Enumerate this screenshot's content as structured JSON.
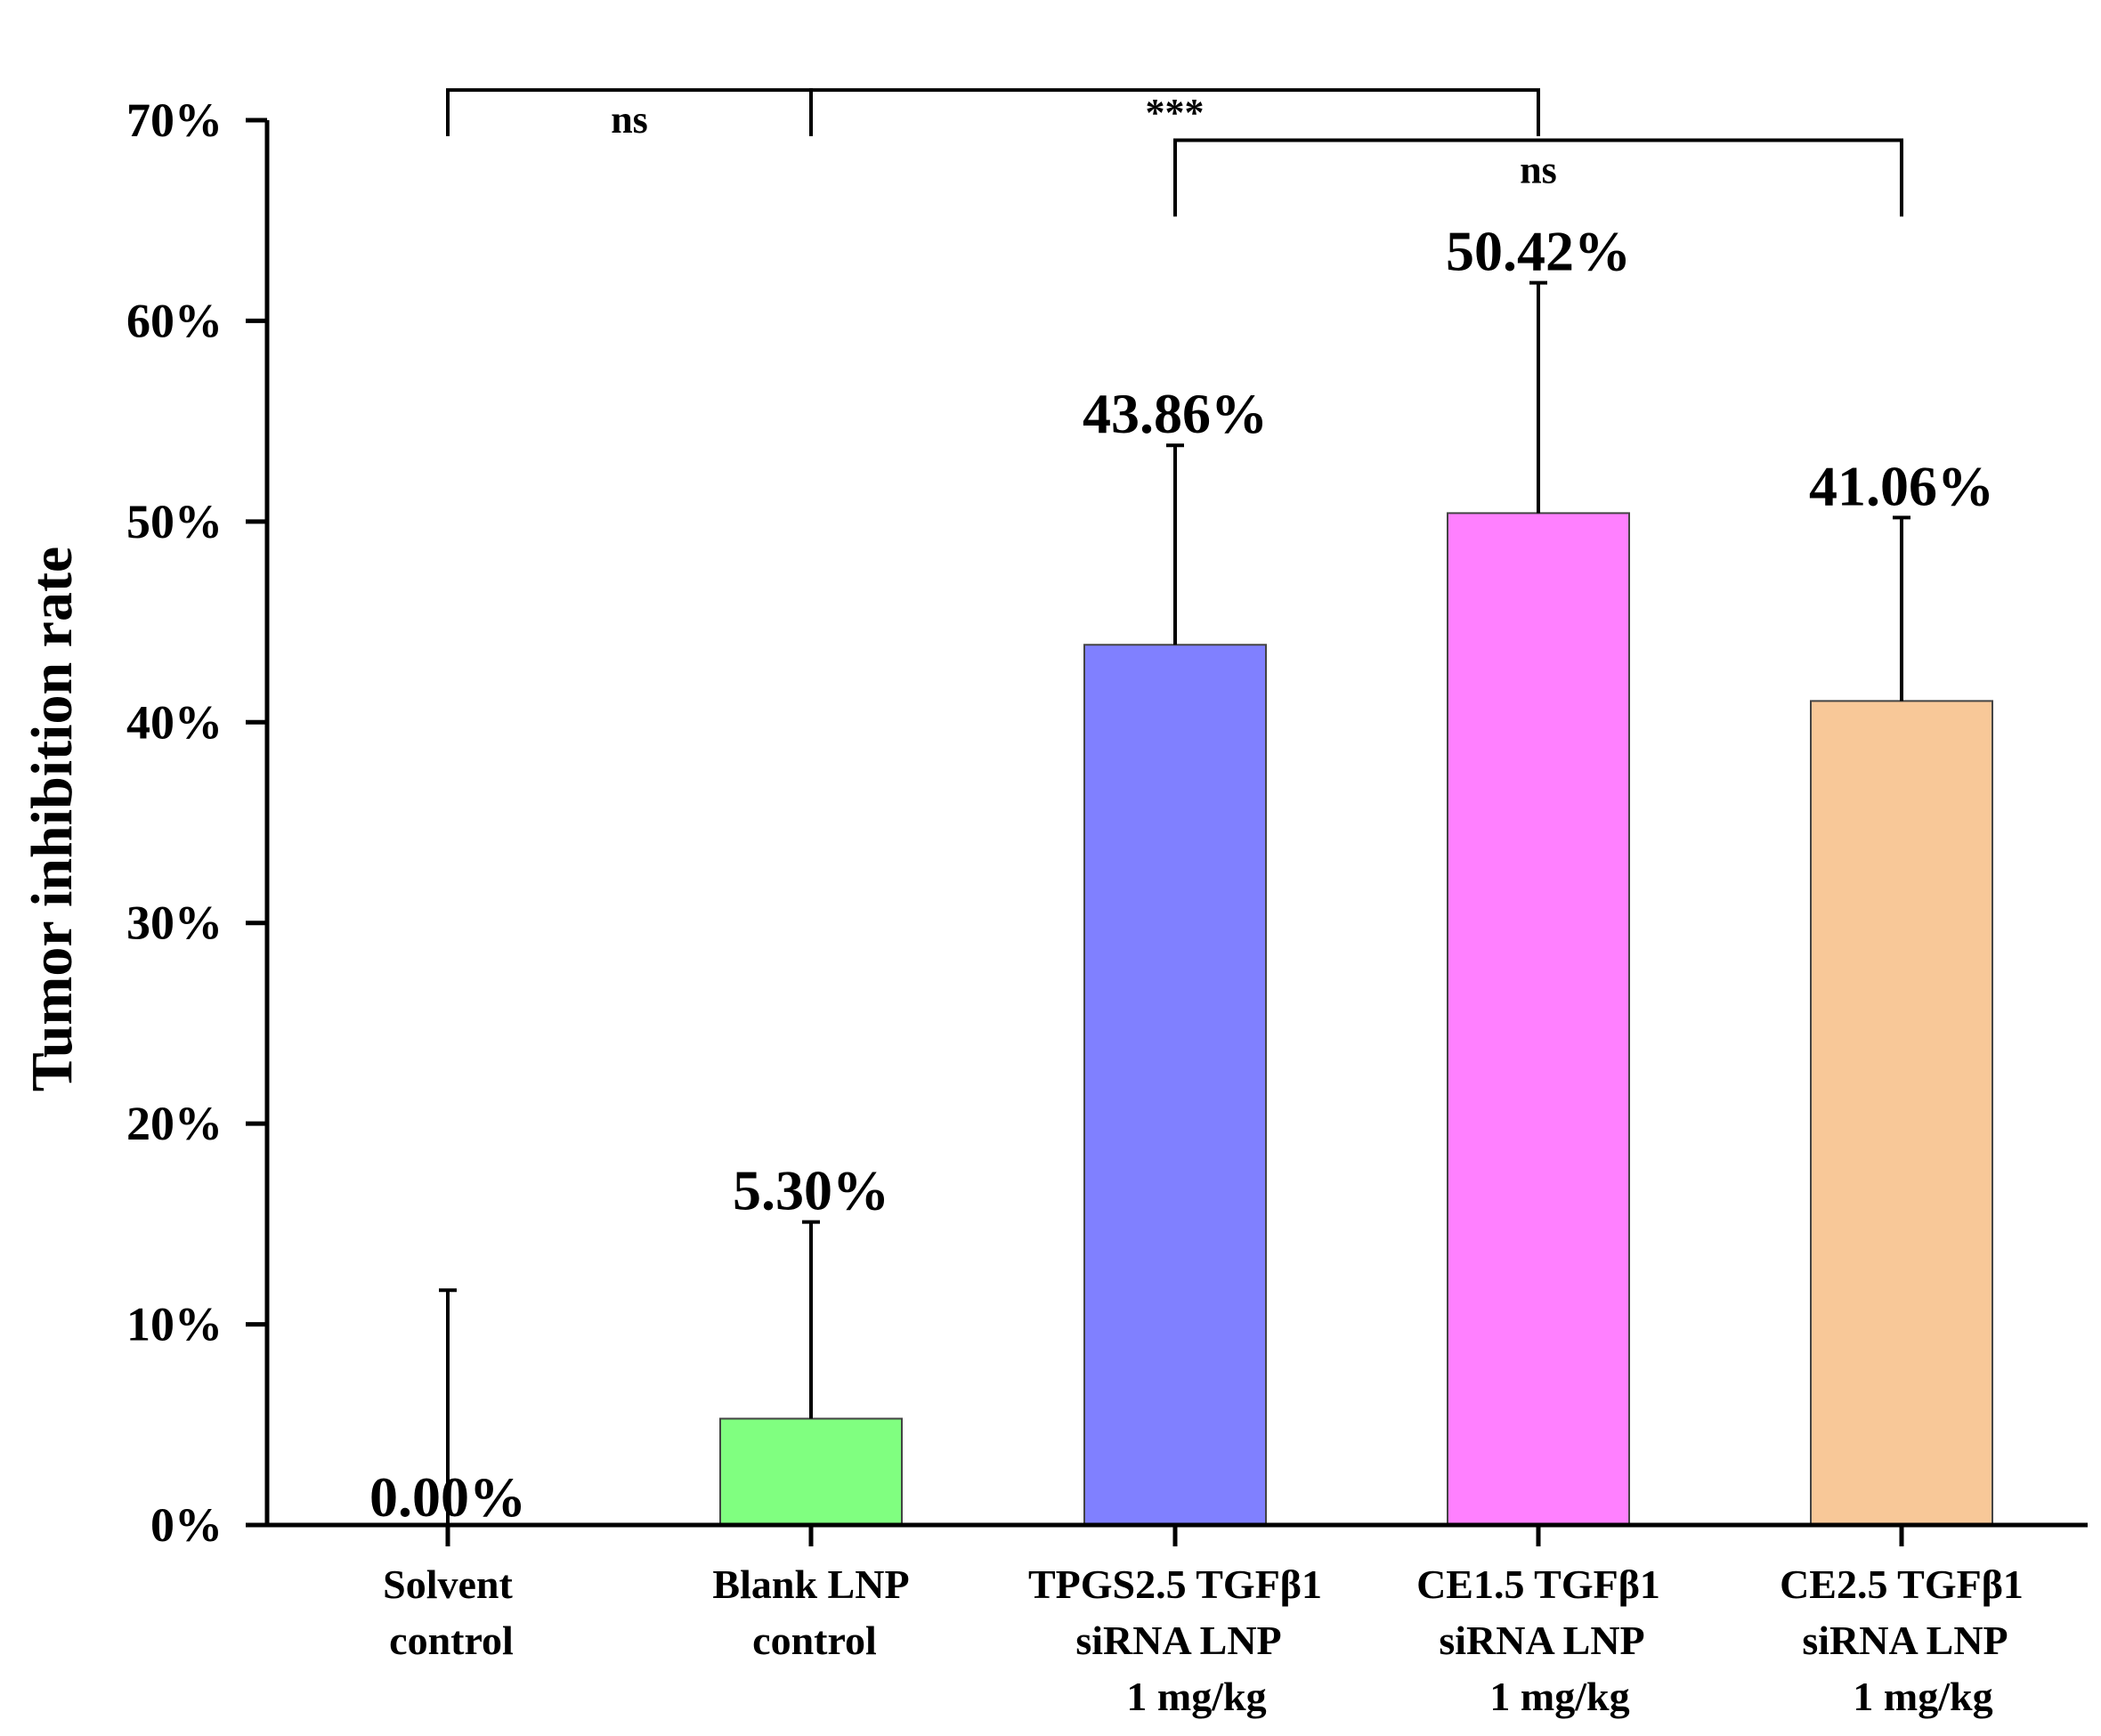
{
  "chart_data": {
    "type": "bar",
    "title": "",
    "xlabel": "",
    "ylabel": "Tumor inhibition rate",
    "ylim": [
      0,
      70
    ],
    "yticks": [
      0,
      10,
      20,
      30,
      40,
      50,
      60,
      70
    ],
    "ytick_labels": [
      "0%",
      "10%",
      "20%",
      "30%",
      "40%",
      "50%",
      "60%",
      "70%"
    ],
    "categories": [
      {
        "lines": [
          "Solvent",
          "control"
        ]
      },
      {
        "lines": [
          "Blank LNP",
          "control"
        ]
      },
      {
        "lines": [
          "TPGS2.5 TGFβ1",
          "siRNA LNP",
          "1 mg/kg"
        ]
      },
      {
        "lines": [
          "CE1.5 TGFβ1",
          "siRNA LNP",
          "1 mg/kg"
        ]
      },
      {
        "lines": [
          "CE2.5 TGFβ1",
          "siRNA LNP",
          "1 mg/kg"
        ]
      }
    ],
    "values": [
      0.0,
      5.3,
      43.86,
      50.42,
      41.06
    ],
    "error_upper": [
      11.7,
      15.1,
      53.8,
      61.9,
      50.2
    ],
    "value_labels": [
      "0.00%",
      "5.30%",
      "43.86%",
      "50.42%",
      "41.06%"
    ],
    "colors": [
      "#ffffff",
      "#80ff80",
      "#8080ff",
      "#ff80ff",
      "#f8c898"
    ],
    "significance": [
      {
        "from": 0,
        "to": 1,
        "label": "ns",
        "level": 71.5
      },
      {
        "from": 1,
        "to": 3,
        "label": "***",
        "level": 71.5
      },
      {
        "from": 2,
        "to": 4,
        "label": "ns",
        "level": 69.0
      }
    ]
  }
}
